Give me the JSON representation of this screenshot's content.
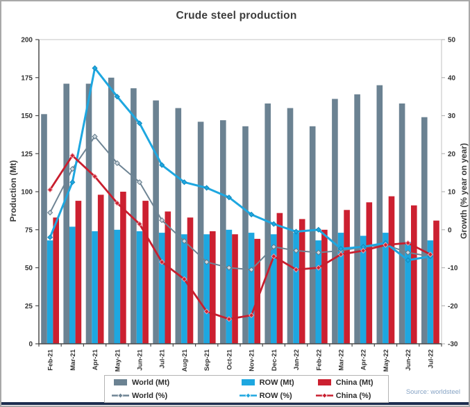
{
  "window": {
    "background": "#ffffff",
    "border_color": "#a8a8a8",
    "bottom_rule_color": "#1d2d4e"
  },
  "chart_data": {
    "type": "bar+line",
    "title": "Crude steel production",
    "source": "Source: worldsteel",
    "categories": [
      "Feb-21",
      "Mar-21",
      "Apr-21",
      "May-21",
      "Jun-21",
      "Jul-21",
      "Aug-21",
      "Sep-21",
      "Oct-21",
      "Nov-21",
      "Dec-21",
      "Jan-22",
      "Feb-22",
      "Mar-22",
      "Apr-22",
      "May-22",
      "Jun-22",
      "Jul-22"
    ],
    "bar_series": [
      {
        "key": "world-mt",
        "name": "World (Mt)",
        "color": "#6b8292",
        "values": [
          151,
          171,
          171,
          175,
          168,
          160,
          155,
          146,
          147,
          143,
          158,
          155,
          143,
          161,
          164,
          170,
          158,
          149
        ]
      },
      {
        "key": "row-mt",
        "name": "ROW (Mt)",
        "color": "#1ea7e0",
        "values": [
          68,
          77,
          74,
          75,
          74,
          73,
          72,
          72,
          75,
          73,
          72,
          73,
          68,
          73,
          71,
          73,
          67,
          68
        ]
      },
      {
        "key": "china-mt",
        "name": "China (Mt)",
        "color": "#cc2030",
        "values": [
          83,
          94,
          98,
          100,
          94,
          87,
          83,
          74,
          72,
          69,
          86,
          82,
          75,
          88,
          93,
          97,
          91,
          81
        ]
      }
    ],
    "line_series": [
      {
        "key": "world-pct",
        "name": "World (%)",
        "color": "#6e8494",
        "width": 2,
        "marker_fill": "#cfd9e0",
        "marker_stroke": "#5f7888",
        "values": [
          4.5,
          16,
          24.5,
          17.5,
          12.5,
          2.5,
          -3,
          -8.5,
          -10,
          -10.5,
          -4.5,
          -5.5,
          -6,
          -5.5,
          -4.5,
          -4,
          -6,
          -7
        ]
      },
      {
        "key": "row-pct",
        "name": "ROW (%)",
        "color": "#1ea7e0",
        "width": 3,
        "marker_fill": "#1ea7e0",
        "marker_stroke": "#1089bd",
        "values": [
          -2,
          12.5,
          42.5,
          35,
          28,
          17,
          12.5,
          11,
          8.5,
          4,
          1.5,
          -0.5,
          0,
          -5,
          -4.5,
          -3.5,
          -8,
          -7
        ]
      },
      {
        "key": "china-pct",
        "name": "China (%)",
        "color": "#c81e2e",
        "width": 2.8,
        "marker_fill": "#cc2030",
        "marker_stroke": "#f0a0a8",
        "values": [
          10.5,
          19.5,
          14,
          7,
          1.5,
          -8.5,
          -13,
          -21.5,
          -23.5,
          -22.5,
          -7,
          -10.5,
          -10,
          -6.5,
          -5.5,
          -4,
          -3.5,
          -6.5
        ]
      }
    ],
    "left_axis": {
      "label": "Production (Mt)",
      "min": 0,
      "max": 200,
      "ticks": [
        0,
        25,
        50,
        75,
        100,
        125,
        150,
        175,
        200
      ]
    },
    "right_axis": {
      "label": "Growth (% year on year)",
      "min": -30,
      "max": 50,
      "ticks": [
        -30,
        -20,
        -10,
        0,
        10,
        20,
        30,
        40,
        50
      ]
    },
    "legend": {
      "items": [
        {
          "key": "world-mt",
          "label": "World (Mt)",
          "type": "bar",
          "color": "#6b8292"
        },
        {
          "key": "row-mt",
          "label": "ROW (Mt)",
          "type": "bar",
          "color": "#1ea7e0"
        },
        {
          "key": "china-mt",
          "label": "China (Mt)",
          "type": "bar",
          "color": "#cc2030"
        },
        {
          "key": "world-pct",
          "label": "World (%)",
          "type": "line",
          "color": "#6e8494"
        },
        {
          "key": "row-pct",
          "label": "ROW (%)",
          "type": "line",
          "color": "#1ea7e0"
        },
        {
          "key": "china-pct",
          "label": "China (%)",
          "type": "line",
          "color": "#c81e2e"
        }
      ]
    }
  }
}
